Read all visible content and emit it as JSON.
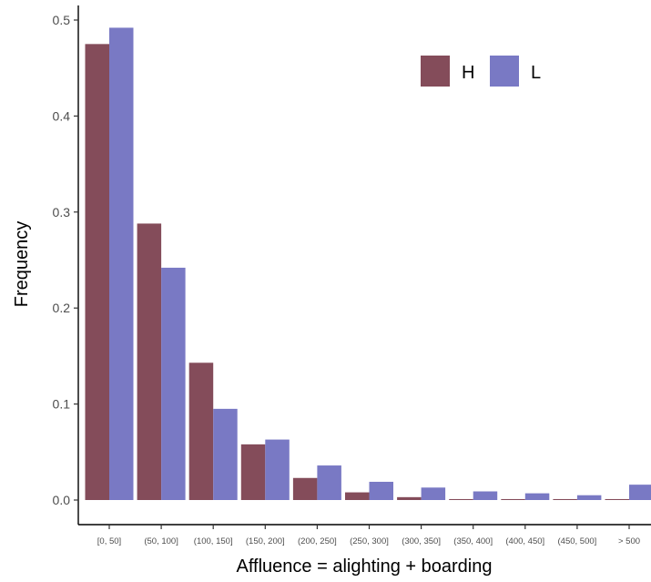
{
  "chart_data": {
    "type": "bar",
    "xlabel": "Affluence = alighting + boarding",
    "ylabel": "Frequency",
    "ylim": [
      0,
      0.52
    ],
    "yticks": [
      0.0,
      0.1,
      0.2,
      0.3,
      0.4,
      0.5
    ],
    "ytick_labels": [
      "0.0",
      "0.1",
      "0.2",
      "0.3",
      "0.4",
      "0.5"
    ],
    "categories": [
      "[0, 50]",
      "(50, 100]",
      "(100, 150]",
      "(150, 200]",
      "(200, 250]",
      "(250, 300]",
      "(300, 350]",
      "(350, 400]",
      "(400, 450]",
      "(450, 500]",
      "> 500"
    ],
    "series": [
      {
        "name": "H",
        "color": "#844c5a",
        "values": [
          0.475,
          0.288,
          0.143,
          0.058,
          0.023,
          0.008,
          0.003,
          0.001,
          0.001,
          0.001,
          0.001
        ]
      },
      {
        "name": "L",
        "color": "#7979c4",
        "values": [
          0.492,
          0.242,
          0.095,
          0.063,
          0.036,
          0.019,
          0.013,
          0.009,
          0.007,
          0.005,
          0.016
        ]
      }
    ],
    "legend_position": "top-right",
    "grid": false
  }
}
